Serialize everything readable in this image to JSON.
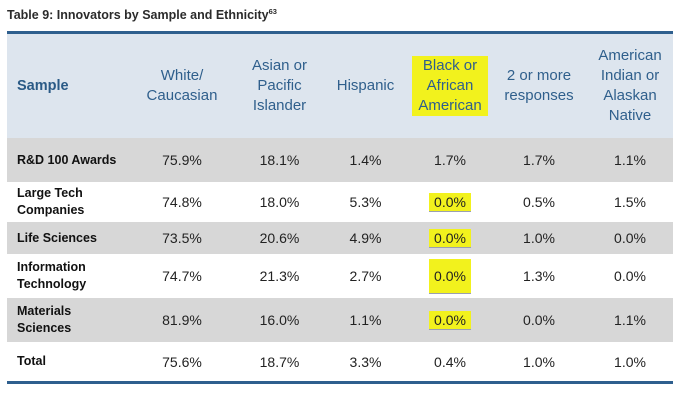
{
  "title": {
    "text": "Table 9: Innovators by Sample and Ethnicity",
    "footnote": "63"
  },
  "columns": [
    "Sample",
    "White/ Caucasian",
    "Asian or Pacific Islander",
    "Hispanic",
    "Black or African American",
    "2 or more responses",
    "American Indian or Alaskan Native"
  ],
  "rows": [
    {
      "sample": "R&D 100 Awards",
      "values": [
        "75.9%",
        "18.1%",
        "1.4%",
        "1.7%",
        "1.7%",
        "1.1%"
      ]
    },
    {
      "sample": "Large Tech Companies",
      "values": [
        "74.8%",
        "18.0%",
        "5.3%",
        "0.0%",
        "0.5%",
        "1.5%"
      ]
    },
    {
      "sample": "Life Sciences",
      "values": [
        "73.5%",
        "20.6%",
        "4.9%",
        "0.0%",
        "1.0%",
        "0.0%"
      ]
    },
    {
      "sample": "Information Technology",
      "values": [
        "74.7%",
        "21.3%",
        "2.7%",
        "0.0%",
        "1.3%",
        "0.0%"
      ]
    },
    {
      "sample": "Materials Sciences",
      "values": [
        "81.9%",
        "16.0%",
        "1.1%",
        "0.0%",
        "0.0%",
        "1.1%"
      ]
    },
    {
      "sample": "Total",
      "values": [
        "75.6%",
        "18.7%",
        "3.3%",
        "0.4%",
        "1.0%",
        "1.0%"
      ]
    }
  ],
  "colors": {
    "accent": "#2e5f8e",
    "header_bg": "#dde5ee",
    "row_gray": "#d7d7d7",
    "highlight": "#f2f21d"
  }
}
